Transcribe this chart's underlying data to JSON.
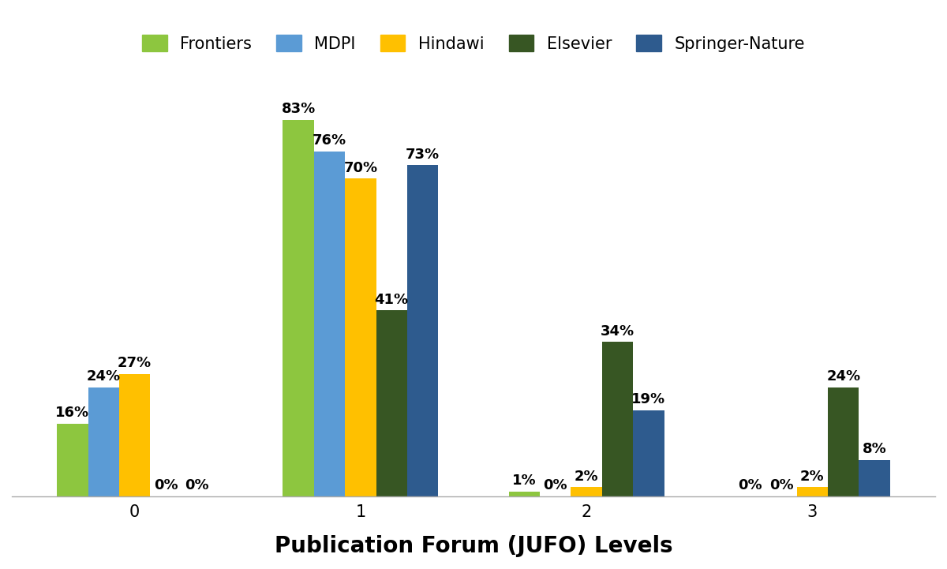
{
  "title": "",
  "xlabel": "Publication Forum (JUFO) Levels",
  "ylabel": "",
  "categories": [
    0,
    1,
    2,
    3
  ],
  "publishers": [
    "Frontiers",
    "MDPI",
    "Hindawi",
    "Elsevier",
    "Springer-Nature"
  ],
  "colors": [
    "#8DC63F",
    "#5B9BD5",
    "#FFC000",
    "#375623",
    "#2E5B8E"
  ],
  "values": {
    "Frontiers": [
      16,
      83,
      1,
      0
    ],
    "MDPI": [
      24,
      76,
      0,
      0
    ],
    "Hindawi": [
      27,
      70,
      2,
      2
    ],
    "Elsevier": [
      0,
      41,
      34,
      24
    ],
    "Springer-Nature": [
      0,
      73,
      19,
      8
    ]
  },
  "bar_width": 0.55,
  "background_color": "#ffffff",
  "label_fontsize": 13,
  "xlabel_fontsize": 20,
  "legend_fontsize": 15,
  "tick_fontsize": 15
}
